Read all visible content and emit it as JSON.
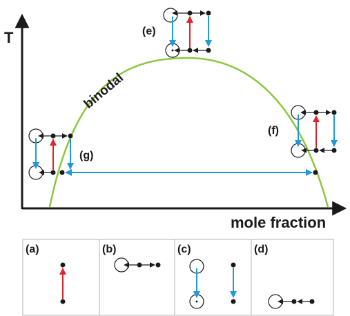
{
  "axes": {
    "y_label": "T",
    "x_label": "mole fraction"
  },
  "curve": {
    "label": "binodal",
    "color": "#8dc63f"
  },
  "cases": {
    "e": "(e)",
    "f": "(f)",
    "g": "(g)"
  },
  "panels": [
    {
      "label": "(a)"
    },
    {
      "label": "(b)"
    },
    {
      "label": "(c)"
    },
    {
      "label": "(d)"
    }
  ],
  "colors": {
    "red_arrow": "#e0242b",
    "blue_arrow": "#1f9ad6",
    "black": "#1a1a1a",
    "panel_border": "#b3b3b3"
  },
  "icons": [
    "circle-marker",
    "dot",
    "arrow"
  ]
}
